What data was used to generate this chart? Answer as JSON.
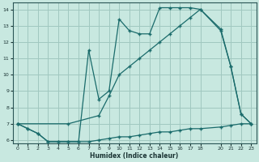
{
  "xlabel": "Humidex (Indice chaleur)",
  "xlim": [
    -0.5,
    23.5
  ],
  "ylim": [
    5.8,
    14.4
  ],
  "yticks": [
    6,
    7,
    8,
    9,
    10,
    11,
    12,
    13,
    14
  ],
  "xticks": [
    0,
    1,
    2,
    3,
    4,
    5,
    6,
    7,
    8,
    9,
    10,
    11,
    12,
    13,
    14,
    15,
    16,
    17,
    18,
    20,
    21,
    22,
    23
  ],
  "bg_color": "#c8e8e0",
  "grid_color": "#a0c8c0",
  "line_color": "#1a6b6b",
  "line1_x": [
    0,
    1,
    2,
    3,
    4,
    5,
    6,
    7,
    8,
    9,
    10,
    11,
    12,
    13,
    14,
    15,
    16,
    17,
    18,
    20,
    21,
    22,
    23
  ],
  "line1_y": [
    7.0,
    6.7,
    6.4,
    5.9,
    5.9,
    5.9,
    5.9,
    5.9,
    6.0,
    6.1,
    6.2,
    6.2,
    6.3,
    6.4,
    6.5,
    6.5,
    6.6,
    6.7,
    6.7,
    6.8,
    6.9,
    7.0,
    7.0
  ],
  "line2_x": [
    0,
    1,
    2,
    3,
    4,
    5,
    6,
    7,
    8,
    9,
    10,
    11,
    12,
    13,
    14,
    15,
    16,
    17,
    18,
    20,
    21,
    22,
    23
  ],
  "line2_y": [
    7.0,
    6.7,
    6.4,
    5.9,
    5.9,
    5.9,
    5.9,
    11.5,
    8.5,
    9.0,
    13.4,
    12.7,
    12.5,
    12.5,
    14.1,
    14.1,
    14.1,
    14.1,
    14.0,
    12.7,
    10.5,
    7.6,
    7.0
  ],
  "line3_x": [
    0,
    5,
    8,
    9,
    10,
    11,
    12,
    13,
    14,
    15,
    16,
    17,
    18,
    20,
    21,
    22,
    23
  ],
  "line3_y": [
    7.0,
    7.0,
    7.5,
    8.7,
    10.0,
    10.5,
    11.0,
    11.5,
    12.0,
    12.5,
    13.0,
    13.5,
    14.0,
    12.8,
    10.5,
    7.6,
    7.0
  ]
}
